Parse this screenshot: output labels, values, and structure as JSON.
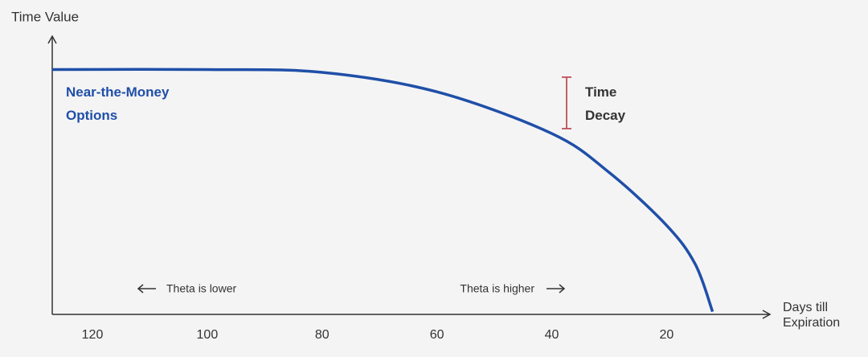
{
  "chart_data": {
    "type": "line",
    "y_label": "Time Value",
    "x_label": "Days till Expiration",
    "x": [
      127,
      100,
      80,
      60,
      40,
      30,
      20,
      15,
      12
    ],
    "series": [
      {
        "name": "Near-the-Money Options",
        "color": "#1f4fa8",
        "values": [
          88,
          88,
          87,
          80,
          65,
          51,
          32,
          18,
          1
        ]
      }
    ],
    "xlim": [
      127,
      2
    ],
    "xticks": [
      120,
      100,
      80,
      60,
      40,
      20
    ],
    "ylim": [
      0,
      100
    ],
    "annotations": [
      "Time Decay",
      "Theta is lower",
      "Theta is higher"
    ]
  }
}
